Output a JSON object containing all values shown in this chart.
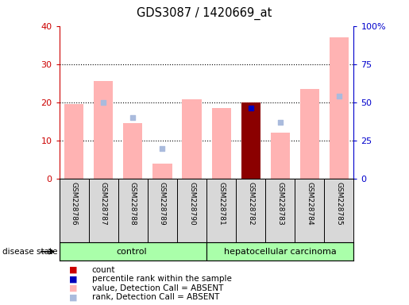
{
  "title": "GDS3087 / 1420669_at",
  "samples": [
    "GSM228786",
    "GSM228787",
    "GSM228788",
    "GSM228789",
    "GSM228790",
    "GSM228781",
    "GSM228782",
    "GSM228783",
    "GSM228784",
    "GSM228785"
  ],
  "groups": [
    "control",
    "control",
    "control",
    "control",
    "control",
    "hepatocellular carcinoma",
    "hepatocellular carcinoma",
    "hepatocellular carcinoma",
    "hepatocellular carcinoma",
    "hepatocellular carcinoma"
  ],
  "value_absent": [
    19.5,
    25.5,
    14.5,
    3.8,
    20.7,
    18.5,
    null,
    12.0,
    23.5,
    37.0
  ],
  "rank_absent": [
    null,
    20.0,
    16.0,
    7.8,
    null,
    null,
    null,
    14.8,
    null,
    21.5
  ],
  "count_present": [
    null,
    null,
    null,
    null,
    null,
    null,
    20.0,
    null,
    null,
    null
  ],
  "percentile_present": [
    null,
    null,
    null,
    null,
    null,
    null,
    18.5,
    null,
    null,
    null
  ],
  "bar_color_absent": "#FFB3B3",
  "bar_color_present": "#8B0000",
  "rank_dot_absent": "#AABBDD",
  "percentile_dot_present": "#0000BB",
  "left_yaxis_color": "#CC0000",
  "right_yaxis_color": "#0000CC",
  "left_ylim": [
    0,
    40
  ],
  "right_ylim": [
    0,
    100
  ],
  "left_yticks": [
    0,
    10,
    20,
    30,
    40
  ],
  "left_yticklabels": [
    "0",
    "10",
    "20",
    "30",
    "40"
  ],
  "right_yticks": [
    0,
    25,
    50,
    75,
    100
  ],
  "right_yticklabels": [
    "0",
    "25",
    "50",
    "75",
    "100%"
  ],
  "control_color": "#AAFFAA",
  "cancer_color": "#AAFFAA",
  "background_color": "#FFFFFF",
  "plot_bg_color": "#FFFFFF",
  "legend_items": [
    {
      "label": "count",
      "color": "#CC0000",
      "marker": "s"
    },
    {
      "label": "percentile rank within the sample",
      "color": "#0000BB",
      "marker": "s"
    },
    {
      "label": "value, Detection Call = ABSENT",
      "color": "#FFB3B3",
      "marker": "s"
    },
    {
      "label": "rank, Detection Call = ABSENT",
      "color": "#AABBDD",
      "marker": "s"
    }
  ]
}
